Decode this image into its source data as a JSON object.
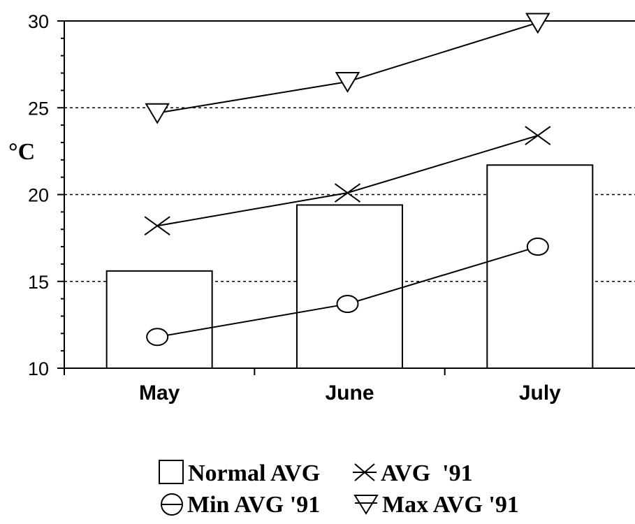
{
  "chart_data": {
    "type": "bar",
    "categories": [
      "May",
      "June",
      "July"
    ],
    "ylabel": "°C",
    "ylim": [
      10,
      30
    ],
    "yticks": [
      10,
      15,
      20,
      25,
      30
    ],
    "grid": true,
    "legend_position": "bottom",
    "bar_series": {
      "name": "Normal AVG",
      "values": [
        15.6,
        19.4,
        21.7
      ]
    },
    "series": [
      {
        "name": "AVG  '91",
        "marker": "x",
        "values": [
          18.2,
          20.1,
          23.4
        ]
      },
      {
        "name": "Min AVG '91",
        "marker": "circle",
        "values": [
          11.8,
          13.7,
          17.0
        ]
      },
      {
        "name": "Max AVG '91",
        "marker": "triangle-down",
        "values": [
          24.7,
          26.5,
          29.9
        ]
      }
    ]
  }
}
